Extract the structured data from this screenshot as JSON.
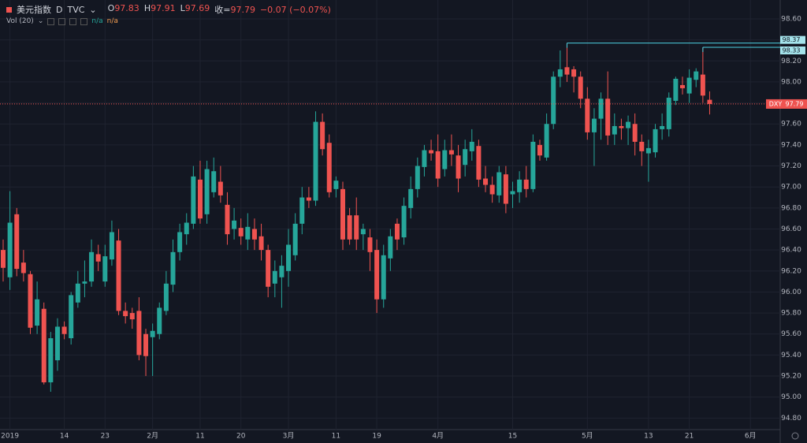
{
  "header": {
    "symbol": "美元指数",
    "interval": "D",
    "exchange": "TVC",
    "fields": [
      {
        "label": "O",
        "value": "97.83"
      },
      {
        "label": "H",
        "value": "97.91"
      },
      {
        "label": "L",
        "value": "97.69"
      },
      {
        "label": "收=",
        "value": "97.79"
      }
    ],
    "change": "−0.07 (−0.07%)",
    "indicator": "Vol (20)",
    "indicator_values": [
      "n/a",
      "n/a"
    ]
  },
  "chart_data": {
    "type": "candlestick",
    "up_color": "#26a69a",
    "down_color": "#ef5350",
    "categories": [
      null,
      "2019",
      null,
      null,
      null,
      null,
      null,
      null,
      null,
      "14",
      null,
      null,
      null,
      null,
      null,
      "23",
      null,
      null,
      null,
      null,
      null,
      null,
      "2月",
      null,
      null,
      null,
      null,
      null,
      null,
      "11",
      null,
      null,
      null,
      null,
      null,
      "20",
      null,
      null,
      null,
      null,
      null,
      null,
      "3月",
      null,
      null,
      null,
      null,
      null,
      null,
      "11",
      null,
      null,
      null,
      null,
      null,
      "19",
      null,
      null,
      null,
      null,
      null,
      null,
      null,
      null,
      "4月",
      null,
      null,
      null,
      null,
      null,
      null,
      null,
      null,
      null,
      null,
      "15",
      null,
      null,
      null,
      null,
      null,
      null,
      null,
      null,
      null,
      null,
      "5月",
      null,
      null,
      null,
      null,
      null,
      null,
      null,
      null,
      "13",
      null,
      null,
      null,
      null,
      null,
      "21",
      null,
      null,
      null,
      null,
      null,
      null,
      null,
      null,
      "6月"
    ],
    "ohlc": [
      [
        96.4,
        96.5,
        96.1,
        96.23
      ],
      [
        96.14,
        96.96,
        96.02,
        96.66
      ],
      [
        96.74,
        96.8,
        96.15,
        96.22
      ],
      [
        96.28,
        96.4,
        96.1,
        96.18
      ],
      [
        96.17,
        96.2,
        95.6,
        95.66
      ],
      [
        95.68,
        96.1,
        95.6,
        95.93
      ],
      [
        95.84,
        95.9,
        95.12,
        95.14
      ],
      [
        95.14,
        95.62,
        95.05,
        95.56
      ],
      [
        95.35,
        95.75,
        95.25,
        95.67
      ],
      [
        95.67,
        95.72,
        95.55,
        95.6
      ],
      [
        95.56,
        96.0,
        95.5,
        95.97
      ],
      [
        95.9,
        96.2,
        95.85,
        96.08
      ],
      [
        96.08,
        96.3,
        95.95,
        96.1
      ],
      [
        96.1,
        96.5,
        96.05,
        96.38
      ],
      [
        96.36,
        96.45,
        96.2,
        96.29
      ],
      [
        96.1,
        96.45,
        96.05,
        96.34
      ],
      [
        96.31,
        96.68,
        96.25,
        96.57
      ],
      [
        96.49,
        96.6,
        95.78,
        95.82
      ],
      [
        95.82,
        95.9,
        95.7,
        95.77
      ],
      [
        95.8,
        95.85,
        95.65,
        95.74
      ],
      [
        95.82,
        95.95,
        95.35,
        95.4
      ],
      [
        95.6,
        95.65,
        95.2,
        95.39
      ],
      [
        95.57,
        95.7,
        95.2,
        95.63
      ],
      [
        95.6,
        95.9,
        95.55,
        95.85
      ],
      [
        95.82,
        96.2,
        95.78,
        96.08
      ],
      [
        96.07,
        96.5,
        96.0,
        96.38
      ],
      [
        96.38,
        96.65,
        96.3,
        96.57
      ],
      [
        96.55,
        96.75,
        96.45,
        96.66
      ],
      [
        96.65,
        97.2,
        96.6,
        97.1
      ],
      [
        97.07,
        97.25,
        96.65,
        96.7
      ],
      [
        96.74,
        97.25,
        96.65,
        97.17
      ],
      [
        96.95,
        97.28,
        96.9,
        97.15
      ],
      [
        97.05,
        97.2,
        96.85,
        96.92
      ],
      [
        96.83,
        96.95,
        96.45,
        96.55
      ],
      [
        96.6,
        96.8,
        96.5,
        96.68
      ],
      [
        96.61,
        96.7,
        96.45,
        96.53
      ],
      [
        96.5,
        96.75,
        96.4,
        96.62
      ],
      [
        96.6,
        96.7,
        96.4,
        96.5
      ],
      [
        96.53,
        96.65,
        96.3,
        96.4
      ],
      [
        96.4,
        96.45,
        95.95,
        96.05
      ],
      [
        96.08,
        96.3,
        95.95,
        96.2
      ],
      [
        96.14,
        96.35,
        95.85,
        96.25
      ],
      [
        96.2,
        96.6,
        96.05,
        96.45
      ],
      [
        96.35,
        96.75,
        96.3,
        96.65
      ],
      [
        96.65,
        97.0,
        96.55,
        96.9
      ],
      [
        96.9,
        97.0,
        96.8,
        96.87
      ],
      [
        96.87,
        97.72,
        96.82,
        97.62
      ],
      [
        97.62,
        97.7,
        97.3,
        97.36
      ],
      [
        97.42,
        97.5,
        96.9,
        96.95
      ],
      [
        96.98,
        97.1,
        96.9,
        97.06
      ],
      [
        96.98,
        97.05,
        96.4,
        96.5
      ],
      [
        96.73,
        96.8,
        96.45,
        96.5
      ],
      [
        96.73,
        96.9,
        96.4,
        96.5
      ],
      [
        96.55,
        96.65,
        96.4,
        96.6
      ],
      [
        96.52,
        96.6,
        96.2,
        96.38
      ],
      [
        96.4,
        96.5,
        95.8,
        95.93
      ],
      [
        95.93,
        96.45,
        95.85,
        96.35
      ],
      [
        96.32,
        96.6,
        96.2,
        96.53
      ],
      [
        96.65,
        96.7,
        96.4,
        96.5
      ],
      [
        96.52,
        96.9,
        96.45,
        96.82
      ],
      [
        96.8,
        97.1,
        96.7,
        96.98
      ],
      [
        96.98,
        97.28,
        96.9,
        97.2
      ],
      [
        97.19,
        97.4,
        97.1,
        97.35
      ],
      [
        97.35,
        97.45,
        97.25,
        97.32
      ],
      [
        97.34,
        97.5,
        97.0,
        97.08
      ],
      [
        97.17,
        97.45,
        97.1,
        97.35
      ],
      [
        97.35,
        97.5,
        97.2,
        97.31
      ],
      [
        97.3,
        97.4,
        96.95,
        97.08
      ],
      [
        97.21,
        97.45,
        97.1,
        97.36
      ],
      [
        97.34,
        97.55,
        97.25,
        97.43
      ],
      [
        97.39,
        97.45,
        97.0,
        97.07
      ],
      [
        97.08,
        97.2,
        96.95,
        97.02
      ],
      [
        97.02,
        97.1,
        96.85,
        96.93
      ],
      [
        96.92,
        97.2,
        96.85,
        97.14
      ],
      [
        97.12,
        97.2,
        96.75,
        96.84
      ],
      [
        96.93,
        97.05,
        96.8,
        96.96
      ],
      [
        96.95,
        97.15,
        96.85,
        97.07
      ],
      [
        97.07,
        97.2,
        96.9,
        96.98
      ],
      [
        96.98,
        97.5,
        96.95,
        97.43
      ],
      [
        97.4,
        97.45,
        97.25,
        97.3
      ],
      [
        97.28,
        97.7,
        97.25,
        97.6
      ],
      [
        97.6,
        98.1,
        97.55,
        98.05
      ],
      [
        98.05,
        98.3,
        97.95,
        98.12
      ],
      [
        98.14,
        98.37,
        98.0,
        98.07
      ],
      [
        98.12,
        98.15,
        97.9,
        98.05
      ],
      [
        98.05,
        98.1,
        97.75,
        97.84
      ],
      [
        97.84,
        97.95,
        97.45,
        97.52
      ],
      [
        97.52,
        97.75,
        97.2,
        97.65
      ],
      [
        97.65,
        97.9,
        97.45,
        97.84
      ],
      [
        97.84,
        98.1,
        97.4,
        97.49
      ],
      [
        97.5,
        97.7,
        97.4,
        97.58
      ],
      [
        97.58,
        97.65,
        97.45,
        97.56
      ],
      [
        97.56,
        97.68,
        97.4,
        97.62
      ],
      [
        97.6,
        97.7,
        97.3,
        97.43
      ],
      [
        97.43,
        97.5,
        97.2,
        97.34
      ],
      [
        97.32,
        97.45,
        97.05,
        97.37
      ],
      [
        97.33,
        97.6,
        97.28,
        97.55
      ],
      [
        97.55,
        97.7,
        97.45,
        97.58
      ],
      [
        97.55,
        97.9,
        97.48,
        97.85
      ],
      [
        97.82,
        98.05,
        97.78,
        98.03
      ],
      [
        97.97,
        98.05,
        97.88,
        97.94
      ],
      [
        97.89,
        98.12,
        97.8,
        98.04
      ],
      [
        98.02,
        98.13,
        97.95,
        98.1
      ],
      [
        98.07,
        98.33,
        97.8,
        97.87
      ],
      [
        97.83,
        97.91,
        97.69,
        97.79
      ],
      null,
      null,
      null,
      null,
      null,
      null
    ],
    "ylim": [
      94.69,
      98.78
    ],
    "yticks": [
      {
        "value": 94.8,
        "label": "94.80"
      },
      {
        "value": 95.0,
        "label": "95.00"
      },
      {
        "value": 95.2,
        "label": "95.20"
      },
      {
        "value": 95.4,
        "label": "95.40"
      },
      {
        "value": 95.6,
        "label": "95.60"
      },
      {
        "value": 95.8,
        "label": "95.80"
      },
      {
        "value": 96.0,
        "label": "96.00"
      },
      {
        "value": 96.2,
        "label": "96.20"
      },
      {
        "value": 96.4,
        "label": "96.40"
      },
      {
        "value": 96.6,
        "label": "96.60"
      },
      {
        "value": 96.8,
        "label": "96.80"
      },
      {
        "value": 97.0,
        "label": "97.00"
      },
      {
        "value": 97.2,
        "label": "97.20"
      },
      {
        "value": 97.4,
        "label": "97.40"
      },
      {
        "value": 97.6,
        "label": "97.60"
      },
      {
        "value": 97.8,
        "label": "97.80"
      },
      {
        "value": 98.0,
        "label": "98.00"
      },
      {
        "value": 98.2,
        "label": "98.20"
      },
      {
        "value": 98.4,
        "label": "98.40"
      },
      {
        "value": 98.6,
        "label": "98.60"
      }
    ],
    "levels": [
      98.37,
      98.33
    ],
    "level_color": "#4dd0e1",
    "last": {
      "name": "DXY",
      "value": 97.79,
      "color": "#ef5350"
    },
    "grid": true
  }
}
